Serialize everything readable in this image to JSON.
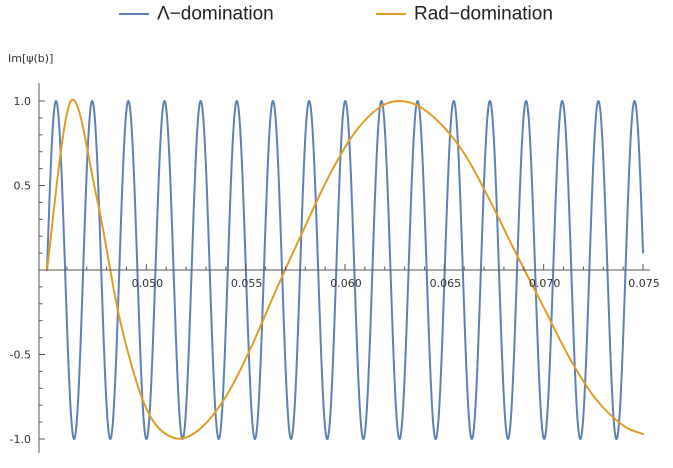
{
  "chart_data": {
    "type": "line",
    "ylabel": "Im[ψ(b)]",
    "xlim": [
      0.045,
      0.075
    ],
    "ylim": [
      -1.0,
      1.0
    ],
    "x_ticks": [
      0.05,
      0.055,
      0.06,
      0.065,
      0.07,
      0.075
    ],
    "x_tick_labels": [
      "0.050",
      "0.055",
      "0.060",
      "0.065",
      "0.070",
      "0.075"
    ],
    "y_ticks": [
      -1.0,
      -0.5,
      0.5,
      1.0
    ],
    "y_tick_labels": [
      "-1.0",
      "-0.5",
      "0.5",
      "1.0"
    ],
    "legend_position": "top",
    "series": [
      {
        "name": "Λ−domination",
        "color": "#5E81B5",
        "form": "sine",
        "x_start": 0.045,
        "x_end": 0.075,
        "x_zero": 0.045,
        "period": 0.00182
      },
      {
        "name": "Rad−domination",
        "color": "#E19C24",
        "x": [
          0.045,
          0.0462,
          0.0475,
          0.0487,
          0.05,
          0.0513,
          0.0526,
          0.054,
          0.0553,
          0.0566,
          0.058,
          0.0593,
          0.0606,
          0.062,
          0.0633,
          0.0646,
          0.066,
          0.0673,
          0.0686,
          0.07,
          0.0713,
          0.0726,
          0.074,
          0.075
        ],
        "y": [
          0.0,
          1.0,
          0.43,
          -0.31,
          -0.82,
          -0.99,
          -0.95,
          -0.75,
          -0.45,
          -0.1,
          0.26,
          0.58,
          0.83,
          0.98,
          0.99,
          0.89,
          0.69,
          0.41,
          0.1,
          -0.22,
          -0.52,
          -0.76,
          -0.92,
          -0.97
        ]
      }
    ]
  }
}
